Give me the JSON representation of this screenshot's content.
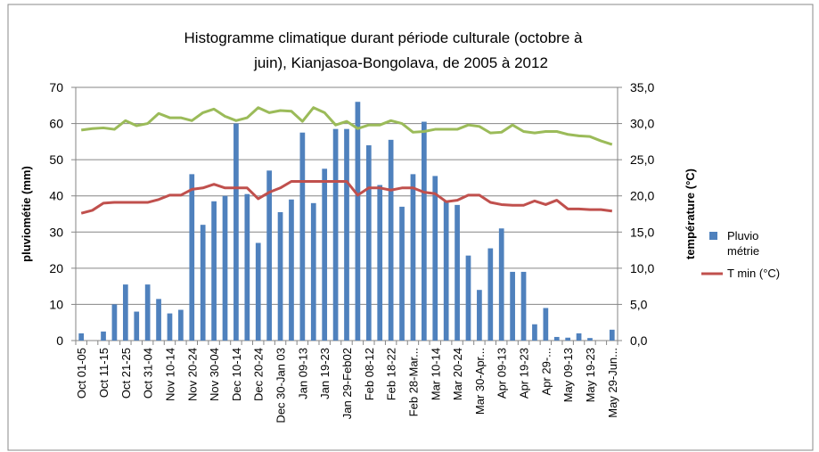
{
  "chart_data": {
    "type": "bar",
    "title": [
      "Histogramme climatique durant période culturale (octobre à",
      "juin),  Kianjasoa-Bongolava, de 2005 à 2012"
    ],
    "y_label": "pluviométie (mm)",
    "y2_label": "température (°C)",
    "categories": [
      "Oct 01-05",
      null,
      "Oct 11-15",
      null,
      "Oct 21-25",
      null,
      "Oct 31-04",
      null,
      "Nov 10-14",
      null,
      "Nov 20-24",
      null,
      "Nov 30-04",
      null,
      "Dec 10-14",
      null,
      "Dec 20-24",
      null,
      "Dec 30-Jan 03",
      null,
      "Jan 09-13",
      null,
      "Jan 19-23",
      null,
      "Jan 29-Feb02",
      null,
      "Feb 08-12",
      null,
      "Feb 18-22",
      null,
      "Feb 28-Mar...",
      null,
      "Mar 10-14",
      null,
      "Mar 20-24",
      null,
      "Mar 30-Apr...",
      null,
      "Apr 09-13",
      null,
      "Apr 19-23",
      null,
      "Apr 29-...",
      null,
      "May 09-13",
      null,
      "May 19-23",
      null,
      "May 29-Jun..."
    ],
    "series": [
      {
        "name": "Pluvio métrie",
        "type": "bar",
        "color": "#4f81bd",
        "values": [
          2,
          0,
          2.5,
          10,
          15.5,
          8,
          15.5,
          11.5,
          7.5,
          8.5,
          46,
          32,
          38.5,
          40,
          60,
          40.5,
          27,
          47,
          35.5,
          39,
          57.5,
          38,
          47.5,
          58.5,
          58.5,
          66,
          54,
          43,
          55.5,
          37,
          46,
          60.5,
          45.5,
          38.5,
          37.5,
          23.5,
          14,
          25.5,
          31,
          19,
          19,
          4.5,
          9,
          1,
          0.8,
          2,
          0.7,
          0,
          3
        ]
      },
      {
        "name": "T min (°C)",
        "type": "line",
        "axis": "y2",
        "color": "#c0504d",
        "values": [
          17.6,
          18.0,
          19.0,
          19.1,
          19.1,
          19.1,
          19.1,
          19.5,
          20.1,
          20.1,
          20.9,
          21.1,
          21.6,
          21.1,
          21.1,
          21.1,
          19.6,
          20.5,
          21.1,
          22.0,
          22.0,
          22.0,
          22.0,
          22.0,
          22.0,
          20.1,
          21.1,
          21.1,
          20.8,
          21.1,
          21.1,
          20.5,
          20.3,
          19.2,
          19.4,
          20.1,
          20.1,
          19.1,
          18.8,
          18.7,
          18.7,
          19.3,
          18.8,
          19.4,
          18.2,
          18.2,
          18.1,
          18.1,
          17.9
        ]
      },
      {
        "type": "line",
        "axis": "y2",
        "color": "#9bbb59",
        "values": [
          29.1,
          29.3,
          29.4,
          29.2,
          30.4,
          29.7,
          30.0,
          31.4,
          30.8,
          30.8,
          30.4,
          31.5,
          32.0,
          31.0,
          30.4,
          30.8,
          32.2,
          31.5,
          31.8,
          31.7,
          30.3,
          32.2,
          31.5,
          29.8,
          30.3,
          29.3,
          29.8,
          29.8,
          30.4,
          30.0,
          28.8,
          28.9,
          29.2,
          29.2,
          29.2,
          29.8,
          29.6,
          28.7,
          28.8,
          29.8,
          28.9,
          28.7,
          28.9,
          28.9,
          28.5,
          28.3,
          28.2,
          27.6,
          27.1
        ]
      }
    ],
    "ylim": [
      0,
      70
    ],
    "yticks": [
      0,
      10,
      20,
      30,
      40,
      50,
      60,
      70
    ],
    "y2lim": [
      0,
      35
    ],
    "y2ticks": [
      {
        "value": 0,
        "label": "0,0"
      },
      {
        "value": 5,
        "label": "5,0"
      },
      {
        "value": 10,
        "label": "10,0"
      },
      {
        "value": 15,
        "label": "15,0"
      },
      {
        "value": 20,
        "label": "20,0"
      },
      {
        "value": 25,
        "label": "25,0"
      },
      {
        "value": 30,
        "label": "30,0"
      },
      {
        "value": 35,
        "label": "35,0"
      }
    ],
    "grid": true
  }
}
